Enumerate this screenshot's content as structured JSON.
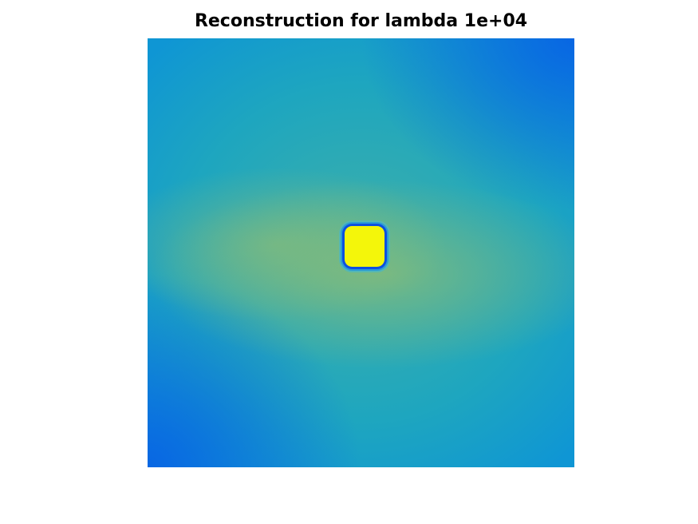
{
  "chart_data": {
    "type": "heatmap",
    "title": "Reconstruction for lambda 1e+04",
    "xlabel": "",
    "ylabel": "",
    "colormap": "parula",
    "axes_visible": false,
    "grid": false,
    "colors": {
      "low": "#0a63e0",
      "mid": "#19a6c6",
      "mid_high": "#3bb3a7",
      "warm": "#9fc06c",
      "high": "#f9fb0e"
    }
  }
}
